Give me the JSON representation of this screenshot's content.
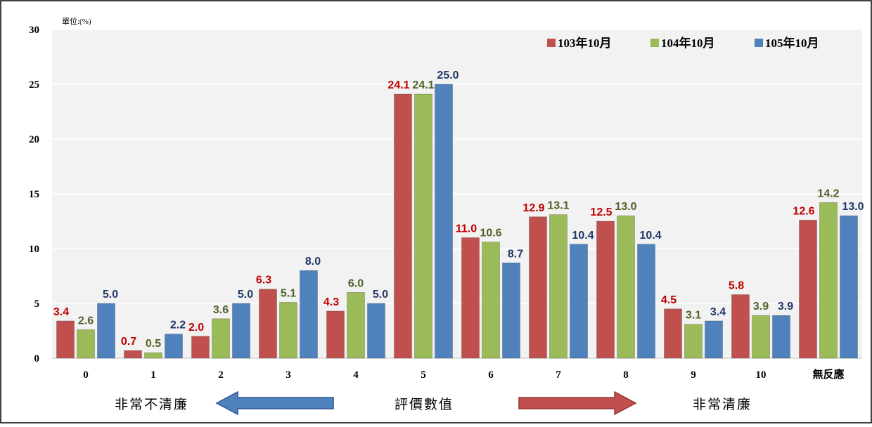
{
  "chart_data": {
    "type": "bar",
    "unit_label": "單位:(%)",
    "categories": [
      "0",
      "1",
      "2",
      "3",
      "4",
      "5",
      "6",
      "7",
      "8",
      "9",
      "10",
      "無反應"
    ],
    "series": [
      {
        "name": "103年10月",
        "color": "#c0504d",
        "label_color": "#c00000",
        "values": [
          3.4,
          0.7,
          2.0,
          6.3,
          4.3,
          24.1,
          11.0,
          12.9,
          12.5,
          4.5,
          5.8,
          12.6
        ]
      },
      {
        "name": "104年10月",
        "color": "#9bbb59",
        "label_color": "#4f6228",
        "values": [
          2.6,
          0.5,
          3.6,
          5.1,
          6.0,
          24.1,
          10.6,
          13.1,
          13.0,
          3.1,
          3.9,
          14.2
        ]
      },
      {
        "name": "105年10月",
        "color": "#4f81bd",
        "label_color": "#1f3864",
        "values": [
          5.0,
          2.2,
          5.0,
          8.0,
          5.0,
          25.0,
          8.7,
          10.4,
          10.4,
          3.4,
          3.9,
          13.0
        ]
      }
    ],
    "ylim": [
      0,
      30
    ],
    "yticks": [
      "0",
      "5",
      "10",
      "15",
      "20",
      "25",
      "30"
    ],
    "grid": true,
    "legend_position": "top-right"
  },
  "footer": {
    "left_text": "非常不清廉",
    "center_text": "評價數值",
    "right_text": "非常清廉",
    "left_arrow_color": "#4f81bd",
    "right_arrow_color": "#c0504d"
  }
}
